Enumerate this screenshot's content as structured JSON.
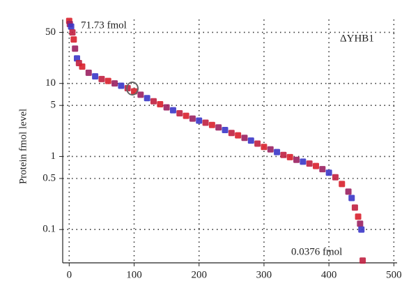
{
  "chart_data": {
    "type": "scatter",
    "y_label": "Protein fmol level",
    "annotations": [
      "71.73 fmol",
      "0.0376 fmol",
      "ΔYHB1"
    ],
    "log_y": true,
    "grid": true,
    "xlim": [
      -10,
      505
    ],
    "ylim": [
      0.035,
      75
    ],
    "xticks": [
      0,
      100,
      200,
      300,
      400,
      500
    ],
    "yticks": [
      0.1,
      0.5,
      1,
      5,
      10,
      50
    ],
    "colors": [
      "#d8202c",
      "#9a2060",
      "#3a36c8",
      "#c02040"
    ],
    "series": [
      {
        "name": "ΔYHB1",
        "x": [
          0,
          1,
          3,
          5,
          7,
          9,
          12,
          15,
          20,
          30,
          40,
          50,
          60,
          70,
          80,
          90,
          100,
          110,
          120,
          130,
          140,
          150,
          160,
          170,
          180,
          190,
          200,
          210,
          220,
          230,
          240,
          250,
          260,
          270,
          280,
          290,
          300,
          310,
          320,
          330,
          340,
          350,
          360,
          370,
          380,
          390,
          400,
          410,
          420,
          430,
          435,
          440,
          445,
          448,
          450,
          452
        ],
        "values": [
          71.73,
          65,
          60,
          50,
          40,
          30,
          22,
          19,
          17,
          14,
          12.5,
          11.5,
          10.8,
          10,
          9.3,
          8.6,
          7.8,
          7.0,
          6.3,
          5.7,
          5.2,
          4.7,
          4.3,
          3.9,
          3.6,
          3.3,
          3.1,
          2.9,
          2.7,
          2.5,
          2.3,
          2.1,
          1.95,
          1.8,
          1.65,
          1.5,
          1.35,
          1.25,
          1.15,
          1.05,
          0.98,
          0.9,
          0.85,
          0.8,
          0.74,
          0.67,
          0.6,
          0.52,
          0.42,
          0.33,
          0.27,
          0.2,
          0.15,
          0.12,
          0.1,
          0.0376
        ]
      }
    ]
  }
}
